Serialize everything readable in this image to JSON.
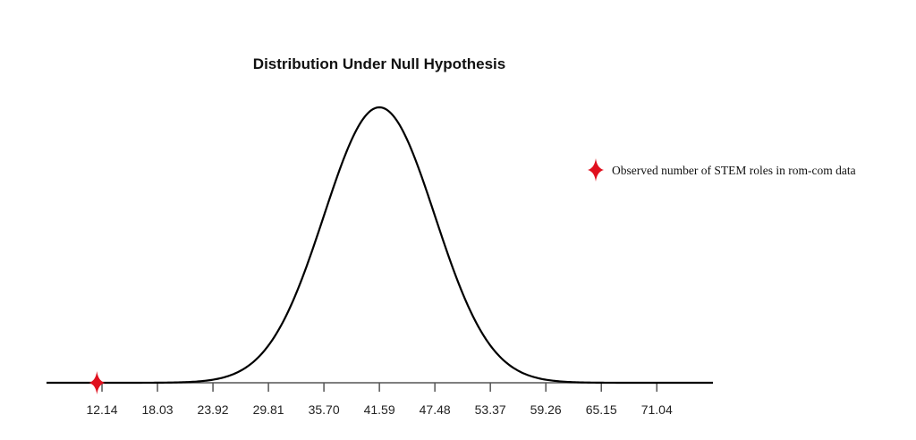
{
  "chart_data": {
    "type": "line",
    "title": "Distribution Under Null Hypothesis",
    "xlabel": "",
    "ylabel": "",
    "distribution": {
      "kind": "normal",
      "mean": 41.59,
      "sd": 5.89
    },
    "x_ticks": [
      "12.14",
      "18.03",
      "23.92",
      "29.81",
      "35.70",
      "41.59",
      "47.48",
      "53.37",
      "59.26",
      "65.15",
      "71.04"
    ],
    "xlim": [
      6.25,
      77.0
    ],
    "grid": false,
    "observed": {
      "value": 11.6,
      "label": "Observed number of STEM roles in rom-com data",
      "color": "#e0101e"
    },
    "legend_placement": "right",
    "curve_color": "#000000"
  }
}
